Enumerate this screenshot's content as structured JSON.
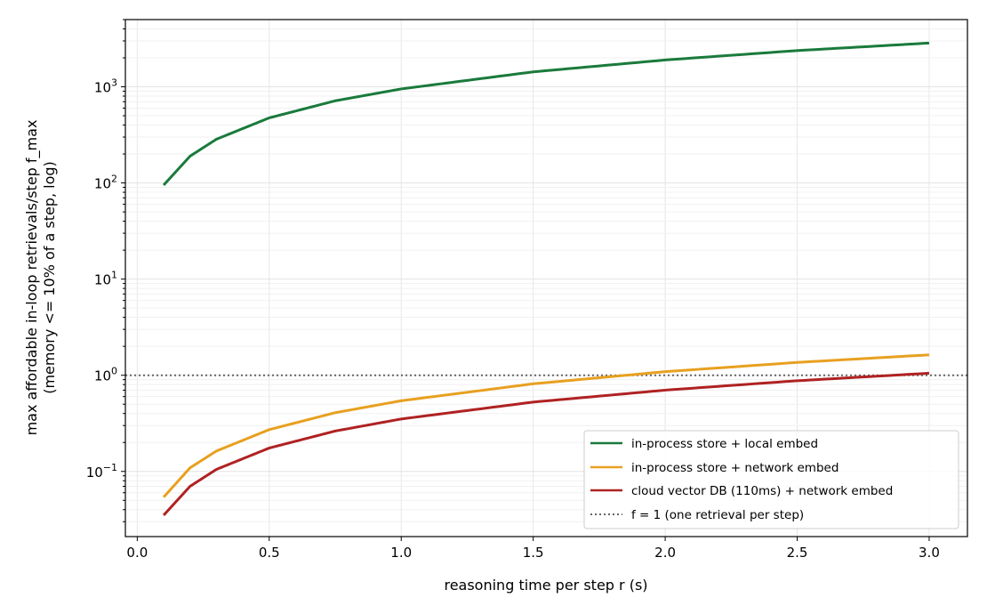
{
  "chart_data": {
    "type": "line",
    "title": "",
    "xlabel": "reasoning time per step r (s)",
    "ylabel_line1": "max affordable in-loop retrievals/step f_max",
    "ylabel_line2": "(memory <= 10% of a step, log)",
    "x_scale": "linear",
    "y_scale": "log",
    "xlim": [
      -0.045,
      3.145
    ],
    "ylim": [
      0.021,
      5000
    ],
    "x_ticks": [
      0.0,
      0.5,
      1.0,
      1.5,
      2.0,
      2.5,
      3.0
    ],
    "x_tick_labels": [
      "0.0",
      "0.5",
      "1.0",
      "1.5",
      "2.0",
      "2.5",
      "3.0"
    ],
    "y_ticks": [
      0.1,
      1,
      10,
      100,
      1000
    ],
    "y_tick_labels": [
      {
        "base": "10",
        "exp": "−1"
      },
      {
        "base": "10",
        "exp": "0"
      },
      {
        "base": "10",
        "exp": "1"
      },
      {
        "base": "10",
        "exp": "2"
      },
      {
        "base": "10",
        "exp": "3"
      }
    ],
    "grid": true,
    "legend_position": "lower-right",
    "series": [
      {
        "name": "in-process store + local embed",
        "color": "#1a7a3c",
        "style": "solid",
        "x": [
          0.1,
          0.2,
          0.3,
          0.5,
          0.75,
          1.0,
          1.5,
          2.0,
          2.5,
          3.0
        ],
        "y": [
          95,
          190,
          285,
          475,
          715,
          950,
          1430,
          1900,
          2380,
          2850
        ]
      },
      {
        "name": "in-process store + network embed",
        "color": "#e8a020",
        "style": "solid",
        "x": [
          0.1,
          0.2,
          0.3,
          0.5,
          0.75,
          1.0,
          1.5,
          2.0,
          2.5,
          3.0
        ],
        "y": [
          0.054,
          0.109,
          0.163,
          0.272,
          0.408,
          0.543,
          0.815,
          1.09,
          1.36,
          1.63
        ]
      },
      {
        "name": "cloud vector DB (110ms) + network embed",
        "color": "#b02222",
        "style": "solid",
        "x": [
          0.1,
          0.2,
          0.3,
          0.5,
          0.75,
          1.0,
          1.5,
          2.0,
          2.5,
          3.0
        ],
        "y": [
          0.035,
          0.07,
          0.105,
          0.175,
          0.263,
          0.351,
          0.526,
          0.7,
          0.877,
          1.05
        ]
      }
    ],
    "reference_line": {
      "name": "f = 1 (one retrieval per step)",
      "y": 1,
      "color": "#666666",
      "style": "dotted"
    }
  }
}
